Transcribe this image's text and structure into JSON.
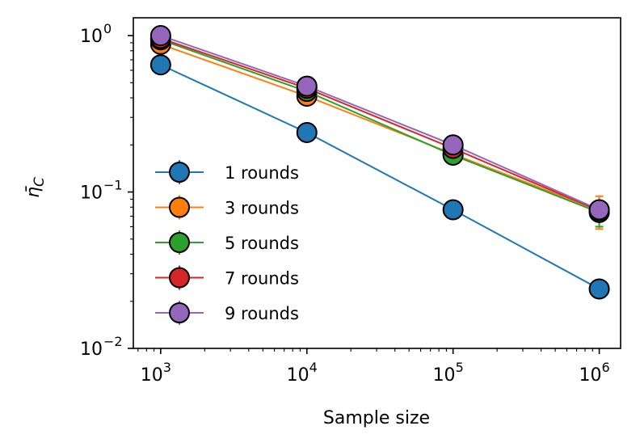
{
  "chart_data": {
    "type": "line",
    "xscale": "log",
    "yscale": "log",
    "xlabel": "Sample size",
    "ylabel": "η̄_C",
    "xlim": [
      650,
      1400000
    ],
    "ylim": [
      0.01,
      1.3
    ],
    "xticks": [
      {
        "value": 1000,
        "base": "10",
        "exp": "3"
      },
      {
        "value": 10000,
        "base": "10",
        "exp": "4"
      },
      {
        "value": 100000,
        "base": "10",
        "exp": "5"
      },
      {
        "value": 1000000,
        "base": "10",
        "exp": "6"
      }
    ],
    "yticks": [
      {
        "value": 1,
        "base": "10",
        "exp": "0"
      },
      {
        "value": 0.1,
        "base": "10",
        "exp": "−1"
      },
      {
        "value": 0.01,
        "base": "10",
        "exp": "−2"
      }
    ],
    "x": [
      1000,
      10000,
      100000,
      1000000
    ],
    "legend_position": "lower-left",
    "series": [
      {
        "name": "1 rounds",
        "color": "#1f77b4",
        "values": [
          0.65,
          0.24,
          0.077,
          0.024
        ],
        "err": [
          0.02,
          0.01,
          0.006,
          0.0015
        ]
      },
      {
        "name": "3 rounds",
        "color": "#ff7f0e",
        "values": [
          0.88,
          0.41,
          0.175,
          0.076
        ],
        "err": [
          0.02,
          0.015,
          0.01,
          0.018
        ]
      },
      {
        "name": "5 rounds",
        "color": "#2ca02c",
        "values": [
          0.94,
          0.44,
          0.172,
          0.074
        ],
        "err": [
          0.02,
          0.015,
          0.01,
          0.014
        ]
      },
      {
        "name": "7 rounds",
        "color": "#d62728",
        "values": [
          0.96,
          0.46,
          0.19,
          0.076
        ],
        "err": [
          0.02,
          0.015,
          0.01,
          0.008
        ]
      },
      {
        "name": "9 rounds",
        "color": "#9467bd",
        "values": [
          1.0,
          0.475,
          0.2,
          0.077
        ],
        "err": [
          0.02,
          0.015,
          0.01,
          0.006
        ]
      }
    ]
  }
}
